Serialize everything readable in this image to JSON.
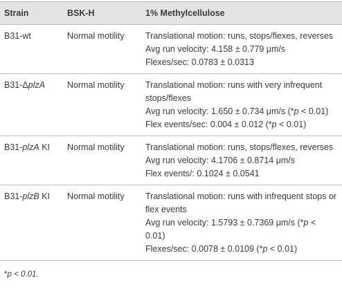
{
  "table": {
    "header": [
      "Strain",
      "BSK-H",
      "1% Methylcellulose"
    ],
    "rows": [
      {
        "strain": [
          "B31-wt"
        ],
        "bskh": "Normal motility",
        "lines": [
          [
            "Translational motion: runs, stops/flexes, reverses"
          ],
          [
            "Avg run velocity: 4.158 ± 0.779 μm/s"
          ],
          [
            "Flexes/sec: 0.0783 ± 0.0313"
          ]
        ]
      },
      {
        "strain": [
          "B31-Δ",
          {
            "text": "plzA",
            "italic": true
          }
        ],
        "bskh": "Normal motility",
        "lines": [
          [
            "Translational motion: runs with very infrequent stops/flexes"
          ],
          [
            "Avg run velocity: 1.650 ± 0.734 μm/s (*",
            {
              "text": "p",
              "italic": true
            },
            " < 0.01)"
          ],
          [
            "Flex events/sec: 0.004 ± 0.012 (*",
            {
              "text": "p",
              "italic": true
            },
            " < 0.01)"
          ]
        ]
      },
      {
        "strain": [
          "B31-",
          {
            "text": "plzA",
            "italic": true
          },
          " KI"
        ],
        "bskh": "Normal motility",
        "lines": [
          [
            "Translational motion: runs, stops/flexes, reverses"
          ],
          [
            "Avg run velocity: 4.1706 ± 0.8714 μm/s"
          ],
          [
            "Flex events/: 0.1024 ± 0.0541"
          ]
        ]
      },
      {
        "strain": [
          "B31-",
          {
            "text": "plzB",
            "italic": true
          },
          " KI"
        ],
        "bskh": "Normal motility",
        "lines": [
          [
            "Translational motion: runs with infrequent stops or flex events"
          ],
          [
            "Avg run velocity: 1.5793 ± 0.7369 μm/s (*",
            {
              "text": "p",
              "italic": true
            },
            " < 0.01)"
          ],
          [
            "Flexes/sec: 0.0078 ± 0.0109 (*",
            {
              "text": "p",
              "italic": true
            },
            " < 0.01)"
          ]
        ]
      }
    ],
    "footnote": [
      "*",
      {
        "text": "p < 0.01.",
        "italic": true
      }
    ]
  }
}
